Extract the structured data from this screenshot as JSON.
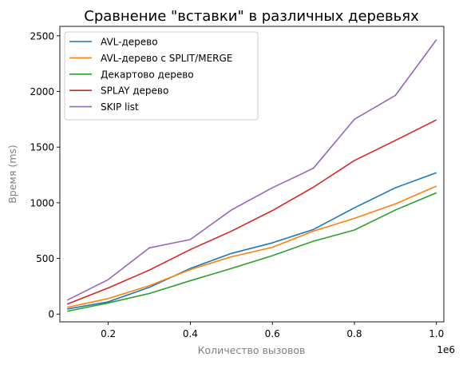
{
  "chart_data": {
    "type": "line",
    "title": "Сравнение \"вставки\" в различных деревьях",
    "xlabel": "Количество вызовов",
    "ylabel": "Время (ms)",
    "x_offset_label": "1e6",
    "x": [
      100000,
      200000,
      300000,
      400000,
      500000,
      600000,
      700000,
      800000,
      900000,
      1000000
    ],
    "xlim": [
      82000,
      1018000
    ],
    "ylim": [
      -70,
      2585
    ],
    "x_ticks": [
      200000,
      400000,
      600000,
      800000,
      1000000
    ],
    "x_tick_labels": [
      "0.2",
      "0.4",
      "0.6",
      "0.8",
      "1.0"
    ],
    "y_ticks": [
      0,
      500,
      1000,
      1500,
      2000,
      2500
    ],
    "y_tick_labels": [
      "0",
      "500",
      "1000",
      "1500",
      "2000",
      "2500"
    ],
    "grid": false,
    "legend_position": "top-left",
    "series": [
      {
        "name": "AVL-дерево",
        "color": "#1f77b4",
        "values": [
          45,
          110,
          240,
          410,
          545,
          640,
          760,
          955,
          1135,
          1270
        ]
      },
      {
        "name": "AVL-дерево с SPLIT/MERGE",
        "color": "#ff7f0e",
        "values": [
          60,
          140,
          255,
          400,
          515,
          600,
          745,
          860,
          990,
          1150
        ]
      },
      {
        "name": "Декартово дерево",
        "color": "#2ca02c",
        "values": [
          25,
          100,
          185,
          300,
          410,
          525,
          655,
          755,
          935,
          1090
        ]
      },
      {
        "name": "SPLAY дерево",
        "color": "#d62728",
        "values": [
          90,
          235,
          395,
          580,
          745,
          930,
          1140,
          1380,
          1560,
          1745
        ]
      },
      {
        "name": "SKIP list",
        "color": "#9467bd",
        "values": [
          125,
          310,
          595,
          670,
          935,
          1135,
          1310,
          1750,
          1965,
          2465
        ]
      }
    ]
  }
}
